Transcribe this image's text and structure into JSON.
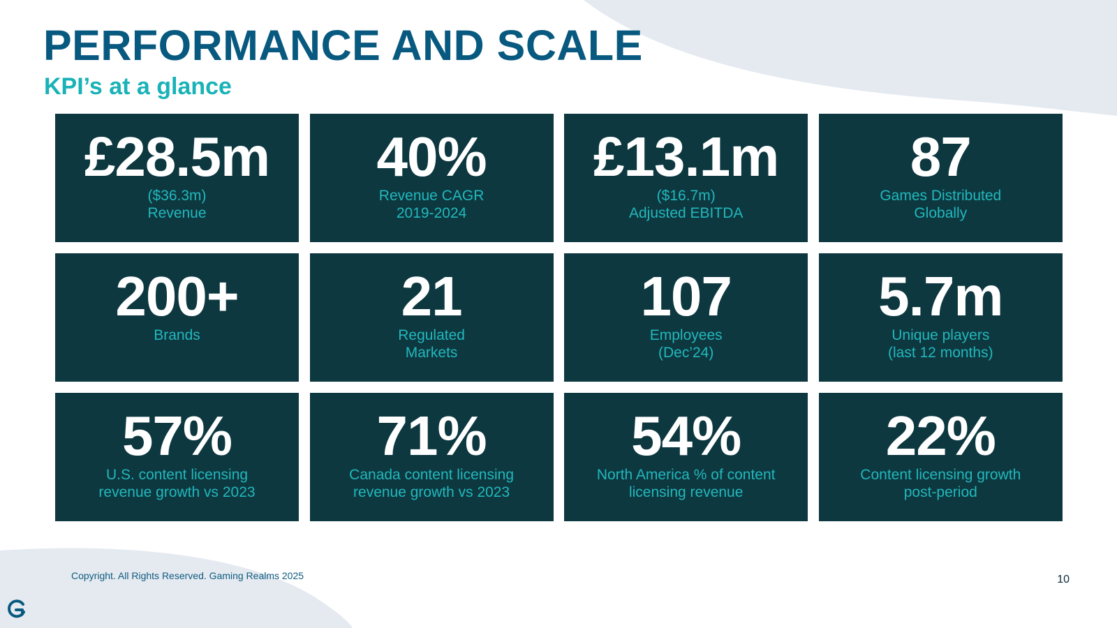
{
  "header": {
    "title": "PERFORMANCE AND SCALE",
    "subtitle": "KPI’s at a glance"
  },
  "kpis": [
    {
      "value": "£28.5m",
      "label": "($36.3m)\nRevenue"
    },
    {
      "value": "40%",
      "label": "Revenue CAGR\n2019-2024"
    },
    {
      "value": "£13.1m",
      "label": "($16.7m)\nAdjusted EBITDA"
    },
    {
      "value": "87",
      "label": "Games Distributed\nGlobally"
    },
    {
      "value": "200+",
      "label": "Brands"
    },
    {
      "value": "21",
      "label": "Regulated\nMarkets"
    },
    {
      "value": "107",
      "label": "Employees\n(Dec’24)"
    },
    {
      "value": "5.7m",
      "label": "Unique players\n(last 12 months)"
    },
    {
      "value": "57%",
      "label": "U.S. content licensing\nrevenue growth vs 2023"
    },
    {
      "value": "71%",
      "label": "Canada content licensing\nrevenue growth vs 2023"
    },
    {
      "value": "54%",
      "label": "North America % of content\nlicensing revenue"
    },
    {
      "value": "22%",
      "label": "Content licensing growth\npost-period"
    }
  ],
  "footer": {
    "copyright": "Copyright. All Rights Reserved. Gaming Realms 2025",
    "page_number": "10"
  },
  "theme": {
    "title_color": "#08597f",
    "subtitle_color": "#19b2b7",
    "tile_bg": "#0d3840",
    "tile_value_color": "#ffffff",
    "tile_label_color": "#22b8bc",
    "footer_color": "#0f5b7e",
    "shape_color": "#e5eaf1"
  },
  "icons": {
    "logo": "gaming-realms-logo-icon"
  }
}
